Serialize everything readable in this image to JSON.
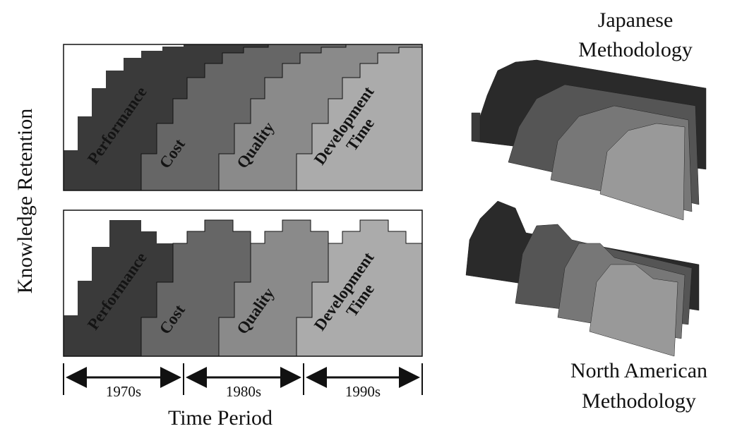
{
  "y_axis_label": "Knowledge Retention",
  "x_axis_label": "Time Period",
  "decades": [
    "1970s",
    "1980s",
    "1990s"
  ],
  "panels": [
    {
      "regions": [
        "Performance",
        "Cost",
        "Quality",
        [
          "Development",
          "Time"
        ]
      ]
    },
    {
      "regions": [
        "Performance",
        "Cost",
        "Quality",
        [
          "Development",
          "Time"
        ]
      ]
    }
  ],
  "japanese": [
    "Japanese",
    "Methodology"
  ],
  "north_american": [
    "North American",
    "Methodology"
  ]
}
